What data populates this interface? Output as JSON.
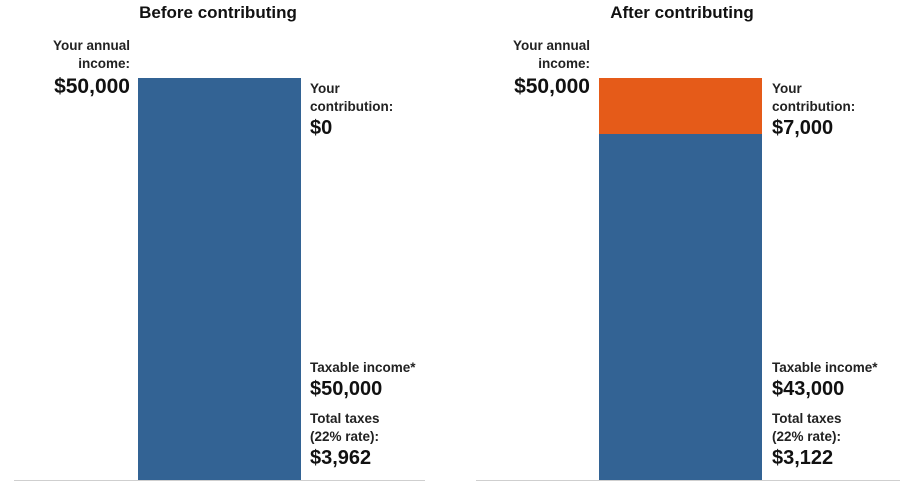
{
  "colors": {
    "taxable": "#336394",
    "contribution": "#E55B19"
  },
  "chart_data": [
    {
      "type": "bar",
      "title": "Before contributing",
      "ylim": [
        0,
        50000
      ],
      "annual_income": {
        "label": "Your annual income:",
        "value": "$50,000",
        "amount": 50000
      },
      "contribution": {
        "label": "Your contribution:",
        "value": "$0",
        "amount": 0
      },
      "taxable_income": {
        "label": "Taxable income*",
        "value": "$50,000",
        "amount": 50000
      },
      "total_taxes": {
        "label_1": "Total taxes",
        "label_2": "(22% rate):",
        "value": "$3,962"
      }
    },
    {
      "type": "bar",
      "title": "After contributing",
      "ylim": [
        0,
        50000
      ],
      "annual_income": {
        "label": "Your annual income:",
        "value": "$50,000",
        "amount": 50000
      },
      "contribution": {
        "label": "Your contribution:",
        "value": "$7,000",
        "amount": 7000
      },
      "taxable_income": {
        "label": "Taxable income*",
        "value": "$43,000",
        "amount": 43000
      },
      "total_taxes": {
        "label_1": "Total taxes",
        "label_2": "(22% rate):",
        "value": "$3,122"
      }
    }
  ]
}
